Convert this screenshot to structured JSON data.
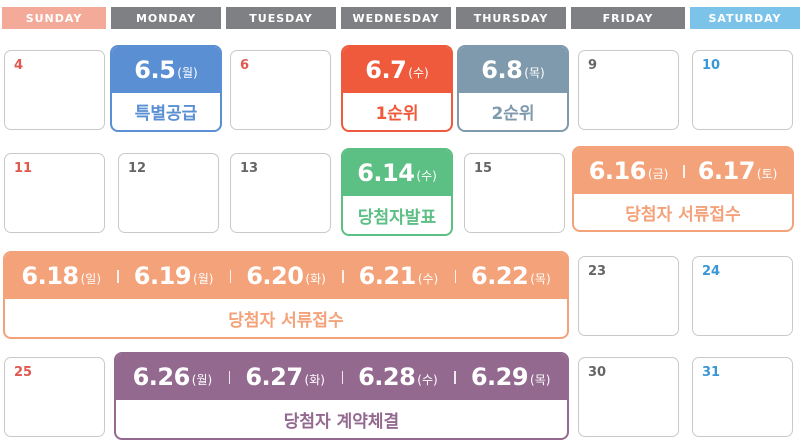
{
  "headers": {
    "sun": "SUNDAY",
    "mon": "MONDAY",
    "tue": "TUESDAY",
    "wed": "WEDNESDAY",
    "thu": "THURSDAY",
    "fri": "FRIDAY",
    "sat": "SATURDAY"
  },
  "days": {
    "d4": "4",
    "d9": "9",
    "d10": "10",
    "d11": "11",
    "d12": "12",
    "d13": "13",
    "d15": "15",
    "d23": "23",
    "d24": "24",
    "d25": "25",
    "d30": "30",
    "d31": "31"
  },
  "events": {
    "special": {
      "date": "6.5",
      "weekday": "(월)",
      "label": "특별공급"
    },
    "first": {
      "date": "6.7",
      "weekday": "(수)",
      "label": "1순위"
    },
    "second": {
      "date": "6.8",
      "weekday": "(목)",
      "label": "2순위"
    },
    "announce": {
      "date": "6.14",
      "weekday": "(수)",
      "label": "당첨자발표"
    },
    "docs1": {
      "dates": [
        {
          "date": "6.16",
          "weekday": "(금)"
        },
        {
          "date": "6.17",
          "weekday": "(토)"
        }
      ],
      "label": "당첨자 서류접수"
    },
    "docs2": {
      "dates": [
        {
          "date": "6.18",
          "weekday": "(일)"
        },
        {
          "date": "6.19",
          "weekday": "(월)"
        },
        {
          "date": "6.20",
          "weekday": "(화)"
        },
        {
          "date": "6.21",
          "weekday": "(수)"
        },
        {
          "date": "6.22",
          "weekday": "(목)"
        }
      ],
      "label": "당첨자 서류접수"
    },
    "contract": {
      "dates": [
        {
          "date": "6.26",
          "weekday": "(월)"
        },
        {
          "date": "6.27",
          "weekday": "(화)"
        },
        {
          "date": "6.28",
          "weekday": "(수)"
        },
        {
          "date": "6.29",
          "weekday": "(목)"
        }
      ],
      "label": "당첨자 계약체결"
    }
  },
  "colors": {
    "sunday": "#f4aa98",
    "weekday": "#7f8083",
    "saturday": "#7cc3ea",
    "special": "#5b8fd4",
    "first": "#ef5a3d",
    "second": "#7f9aac",
    "announce": "#5cbf84",
    "docs": "#f4a279",
    "contract": "#94698f"
  }
}
